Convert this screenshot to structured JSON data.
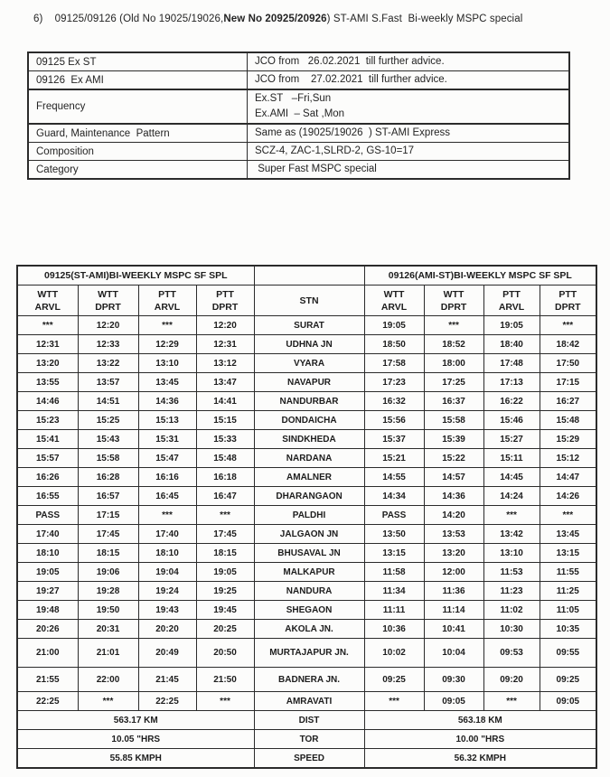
{
  "colors": {
    "background": "#fcfcfb",
    "border": "#2b2b2b",
    "text": "#1f1f1f"
  },
  "heading": {
    "prefix": "6)    09125/09126 (Old No 19025/19026,",
    "bold": "New No 20925/20926",
    "suffix": ") ST-AMI S.Fast  Bi-weekly MSPC special"
  },
  "info_table": {
    "rows": [
      {
        "label": "09125 Ex ST",
        "value": "JCO from   26.02.2021  till further advice."
      },
      {
        "label": "09126  Ex AMI",
        "value": "JCO from    27.02.2021  till further advice."
      },
      {
        "label": "Frequency",
        "value": "Ex.ST   –Fri,Sun",
        "value2": "Ex.AMI  – Sat ,Mon"
      },
      {
        "label": "Guard, Maintenance  Pattern",
        "value": "Same as (19025/19026  ) ST-AMI Express"
      },
      {
        "label": "Composition",
        "value": "SCZ-4, ZAC-1,SLRD-2, GS-10=17"
      },
      {
        "label": "Category",
        "value": " Super Fast MSPC special"
      }
    ]
  },
  "timetable": {
    "left_title": "09125(ST-AMI)BI-WEEKLY MSPC SF SPL",
    "right_title": "09126(AMI-ST)BI-WEEKLY MSPC SF SPL",
    "columns": [
      {
        "l1": "WTT",
        "l2": "ARVL"
      },
      {
        "l1": "WTT",
        "l2": "DPRT"
      },
      {
        "l1": "PTT",
        "l2": "ARVL"
      },
      {
        "l1": "PTT",
        "l2": "DPRT"
      },
      {
        "l1": "STN",
        "l2": ""
      },
      {
        "l1": "WTT",
        "l2": "ARVL"
      },
      {
        "l1": "WTT",
        "l2": "DPRT"
      },
      {
        "l1": "PTT",
        "l2": "ARVL"
      },
      {
        "l1": "PTT",
        "l2": "DPRT"
      }
    ],
    "rows": [
      [
        "***",
        "12:20",
        "***",
        "12:20",
        "SURAT",
        "19:05",
        "***",
        "19:05",
        "***"
      ],
      [
        "12:31",
        "12:33",
        "12:29",
        "12:31",
        "UDHNA JN",
        "18:50",
        "18:52",
        "18:40",
        "18:42"
      ],
      [
        "13:20",
        "13:22",
        "13:10",
        "13:12",
        "VYARA",
        "17:58",
        "18:00",
        "17:48",
        "17:50"
      ],
      [
        "13:55",
        "13:57",
        "13:45",
        "13:47",
        "NAVAPUR",
        "17:23",
        "17:25",
        "17:13",
        "17:15"
      ],
      [
        "14:46",
        "14:51",
        "14:36",
        "14:41",
        "NANDURBAR",
        "16:32",
        "16:37",
        "16:22",
        "16:27"
      ],
      [
        "15:23",
        "15:25",
        "15:13",
        "15:15",
        "DONDAICHA",
        "15:56",
        "15:58",
        "15:46",
        "15:48"
      ],
      [
        "15:41",
        "15:43",
        "15:31",
        "15:33",
        "SINDKHEDA",
        "15:37",
        "15:39",
        "15:27",
        "15:29"
      ],
      [
        "15:57",
        "15:58",
        "15:47",
        "15:48",
        "NARDANA",
        "15:21",
        "15:22",
        "15:11",
        "15:12"
      ],
      [
        "16:26",
        "16:28",
        "16:16",
        "16:18",
        "AMALNER",
        "14:55",
        "14:57",
        "14:45",
        "14:47"
      ],
      [
        "16:55",
        "16:57",
        "16:45",
        "16:47",
        "DHARANGAON",
        "14:34",
        "14:36",
        "14:24",
        "14:26"
      ],
      [
        "PASS",
        "17:15",
        "***",
        "***",
        "PALDHI",
        "PASS",
        "14:20",
        "***",
        "***"
      ],
      [
        "17:40",
        "17:45",
        "17:40",
        "17:45",
        "JALGAON JN",
        "13:50",
        "13:53",
        "13:42",
        "13:45"
      ],
      [
        "18:10",
        "18:15",
        "18:10",
        "18:15",
        "BHUSAVAL JN",
        "13:15",
        "13:20",
        "13:10",
        "13:15"
      ],
      [
        "19:05",
        "19:06",
        "19:04",
        "19:05",
        "MALKAPUR",
        "11:58",
        "12:00",
        "11:53",
        "11:55"
      ],
      [
        "19:27",
        "19:28",
        "19:24",
        "19:25",
        "NANDURA",
        "11:34",
        "11:36",
        "11:23",
        "11:25"
      ],
      [
        "19:48",
        "19:50",
        "19:43",
        "19:45",
        "SHEGAON",
        "11:11",
        "11:14",
        "11:02",
        "11:05"
      ],
      [
        "20:26",
        "20:31",
        "20:20",
        "20:25",
        "AKOLA JN.",
        "10:36",
        "10:41",
        "10:30",
        "10:35"
      ],
      [
        "21:00",
        "21:01",
        "20:49",
        "20:50",
        "MURTAJAPUR JN.",
        "10:02",
        "10:04",
        "09:53",
        "09:55"
      ],
      [
        "21:55",
        "22:00",
        "21:45",
        "21:50",
        "BADNERA JN.",
        "09:25",
        "09:30",
        "09:20",
        "09:25"
      ],
      [
        "22:25",
        "***",
        "22:25",
        "***",
        "AMRAVATI",
        "***",
        "09:05",
        "***",
        "09:05"
      ]
    ],
    "summary": [
      {
        "left": "563.17 KM",
        "center": "DIST",
        "right": "563.18  KM"
      },
      {
        "left": "10.05 \"HRS",
        "center": "TOR",
        "right": "10.00 \"HRS"
      },
      {
        "left": "55.85 KMPH",
        "center": "SPEED",
        "right": "56.32 KMPH"
      }
    ]
  }
}
